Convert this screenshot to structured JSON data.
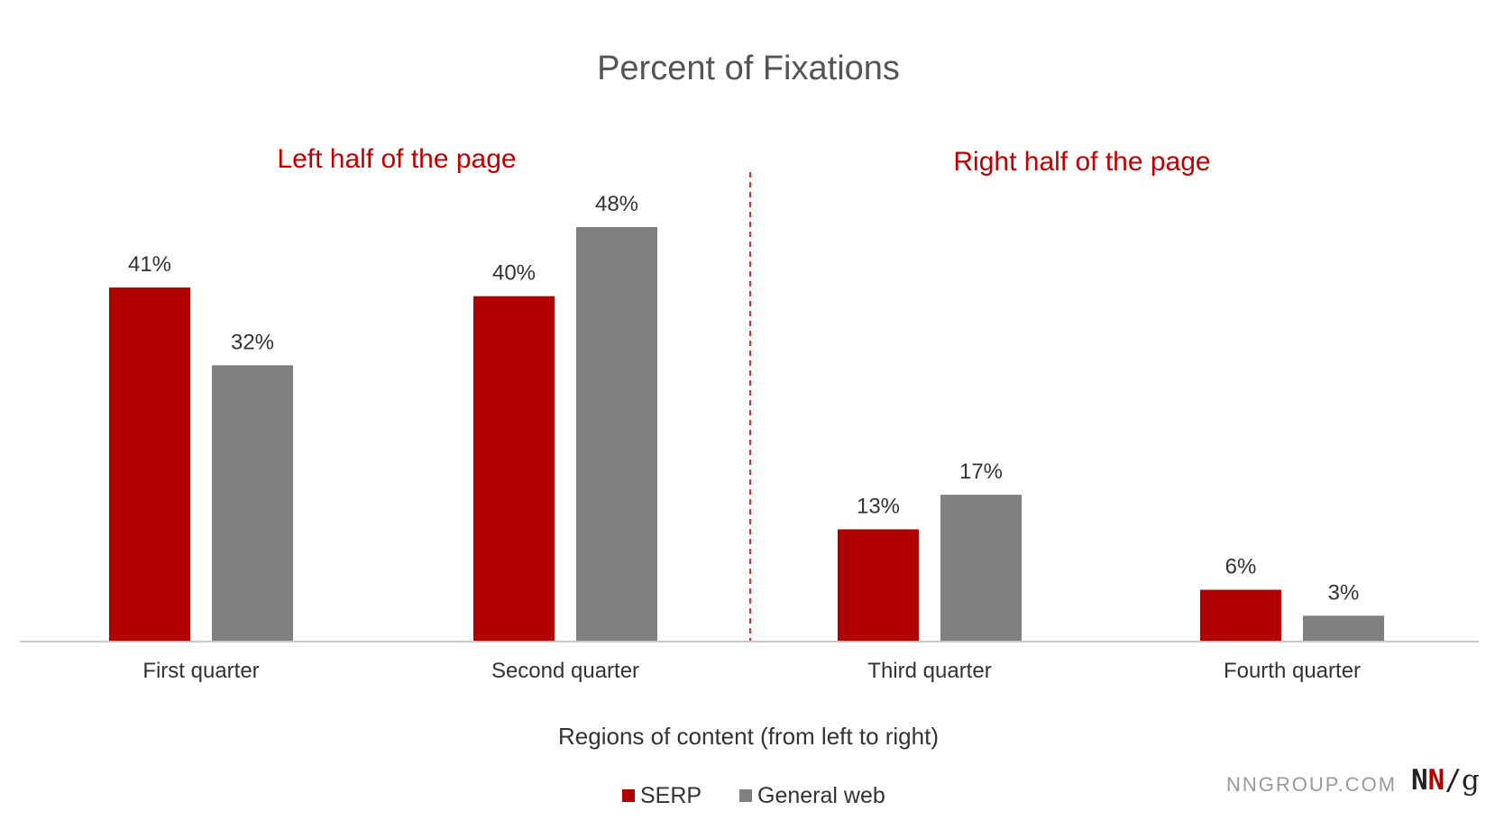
{
  "chart_data": {
    "type": "bar",
    "title": "Percent of Fixations",
    "xlabel": "Regions of content (from left to right)",
    "ylabel": "",
    "ylim": [
      0,
      50
    ],
    "grid": false,
    "legend_position": "bottom",
    "categories": [
      "First quarter",
      "Second quarter",
      "Third quarter",
      "Fourth quarter"
    ],
    "series": [
      {
        "name": "SERP",
        "color": "#b00000",
        "values": [
          41,
          40,
          13,
          6
        ],
        "labels": [
          "41%",
          "40%",
          "13%",
          "6%"
        ]
      },
      {
        "name": "General web",
        "color": "#808080",
        "values": [
          32,
          48,
          17,
          3
        ],
        "labels": [
          "32%",
          "48%",
          "17%",
          "3%"
        ]
      }
    ],
    "annotations": [
      {
        "text": "Left half of the page",
        "color": "#c00000"
      },
      {
        "text": "Right half of the page",
        "color": "#c00000"
      }
    ],
    "divider": {
      "style": "dashed",
      "color": "#d03030",
      "between": [
        "Second quarter",
        "Third quarter"
      ]
    }
  },
  "branding": {
    "site": "NNGROUP.COM",
    "logo_n1": "N",
    "logo_n2": "N",
    "logo_slash": "/",
    "logo_g": "g"
  }
}
